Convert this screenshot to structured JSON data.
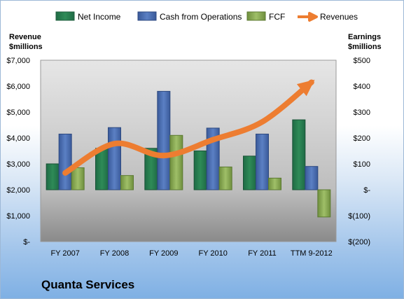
{
  "company": "Quanta Services",
  "chart_data": {
    "type": "bar",
    "categories": [
      "FY 2007",
      "FY 2008",
      "FY 2009",
      "FY 2010",
      "FY 2011",
      "TTM 9-2012"
    ],
    "left_axis": {
      "label_line1": "Revenue",
      "label_line2": "$millions",
      "ticks": [
        "$-",
        "$1,000",
        "$2,000",
        "$3,000",
        "$4,000",
        "$5,000",
        "$6,000",
        "$7,000"
      ],
      "ylim": [
        0,
        7000
      ]
    },
    "right_axis": {
      "label_line1": "Earnings",
      "label_line2": "$millions",
      "ticks": [
        "$(200)",
        "$(100)",
        "$-",
        "$100",
        "$200",
        "$300",
        "$400",
        "$500"
      ],
      "ylim": [
        -200,
        500
      ]
    },
    "series": [
      {
        "name": "Net Income",
        "type": "bar",
        "axis": "right",
        "color": "#2e8b57",
        "values": [
          100,
          160,
          160,
          150,
          130,
          270
        ]
      },
      {
        "name": "Cash from Operations",
        "type": "bar",
        "axis": "right",
        "color": "#4f73b8",
        "values": [
          215,
          240,
          380,
          238,
          215,
          90
        ]
      },
      {
        "name": "FCF",
        "type": "bar",
        "axis": "right",
        "color": "#8db05a",
        "values": [
          85,
          55,
          210,
          88,
          45,
          -105
        ]
      },
      {
        "name": "Revenues",
        "type": "line",
        "axis": "left",
        "color": "#ed7d31",
        "values": [
          2650,
          3780,
          3320,
          3930,
          4620,
          6150
        ]
      }
    ],
    "legend_position": "top",
    "grid": false
  }
}
